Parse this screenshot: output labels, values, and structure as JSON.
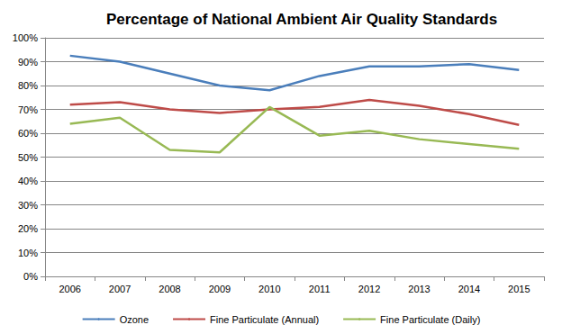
{
  "chart_data": {
    "type": "line",
    "title": "Percentage of National Ambient Air Quality Standards",
    "categories": [
      "2006",
      "2007",
      "2008",
      "2009",
      "2010",
      "2011",
      "2012",
      "2013",
      "2014",
      "2015"
    ],
    "series": [
      {
        "name": "Ozone",
        "color": "#4a7ebb",
        "values": [
          92.5,
          90,
          85,
          80,
          78,
          84,
          88,
          88,
          89,
          86.5
        ]
      },
      {
        "name": "Fine Particulate (Annual)",
        "color": "#be4b48",
        "values": [
          72,
          73,
          70,
          68.5,
          70,
          71,
          74,
          71.5,
          68,
          63.5
        ]
      },
      {
        "name": "Fine Particulate (Daily)",
        "color": "#98b954",
        "values": [
          64,
          66.5,
          53,
          52,
          71,
          59,
          61,
          57.5,
          55.5,
          53.5
        ]
      }
    ],
    "ylim": [
      0,
      100
    ],
    "yticks": [
      {
        "value": 0,
        "label": "0%"
      },
      {
        "value": 10,
        "label": "10%"
      },
      {
        "value": 20,
        "label": "20%"
      },
      {
        "value": 30,
        "label": "30%"
      },
      {
        "value": 40,
        "label": "40%"
      },
      {
        "value": 50,
        "label": "50%"
      },
      {
        "value": 60,
        "label": "60%"
      },
      {
        "value": 70,
        "label": "70%"
      },
      {
        "value": 80,
        "label": "80%"
      },
      {
        "value": 90,
        "label": "90%"
      },
      {
        "value": 100,
        "label": "100%"
      }
    ],
    "grid": true,
    "legend": "bottom",
    "marker": "none"
  }
}
